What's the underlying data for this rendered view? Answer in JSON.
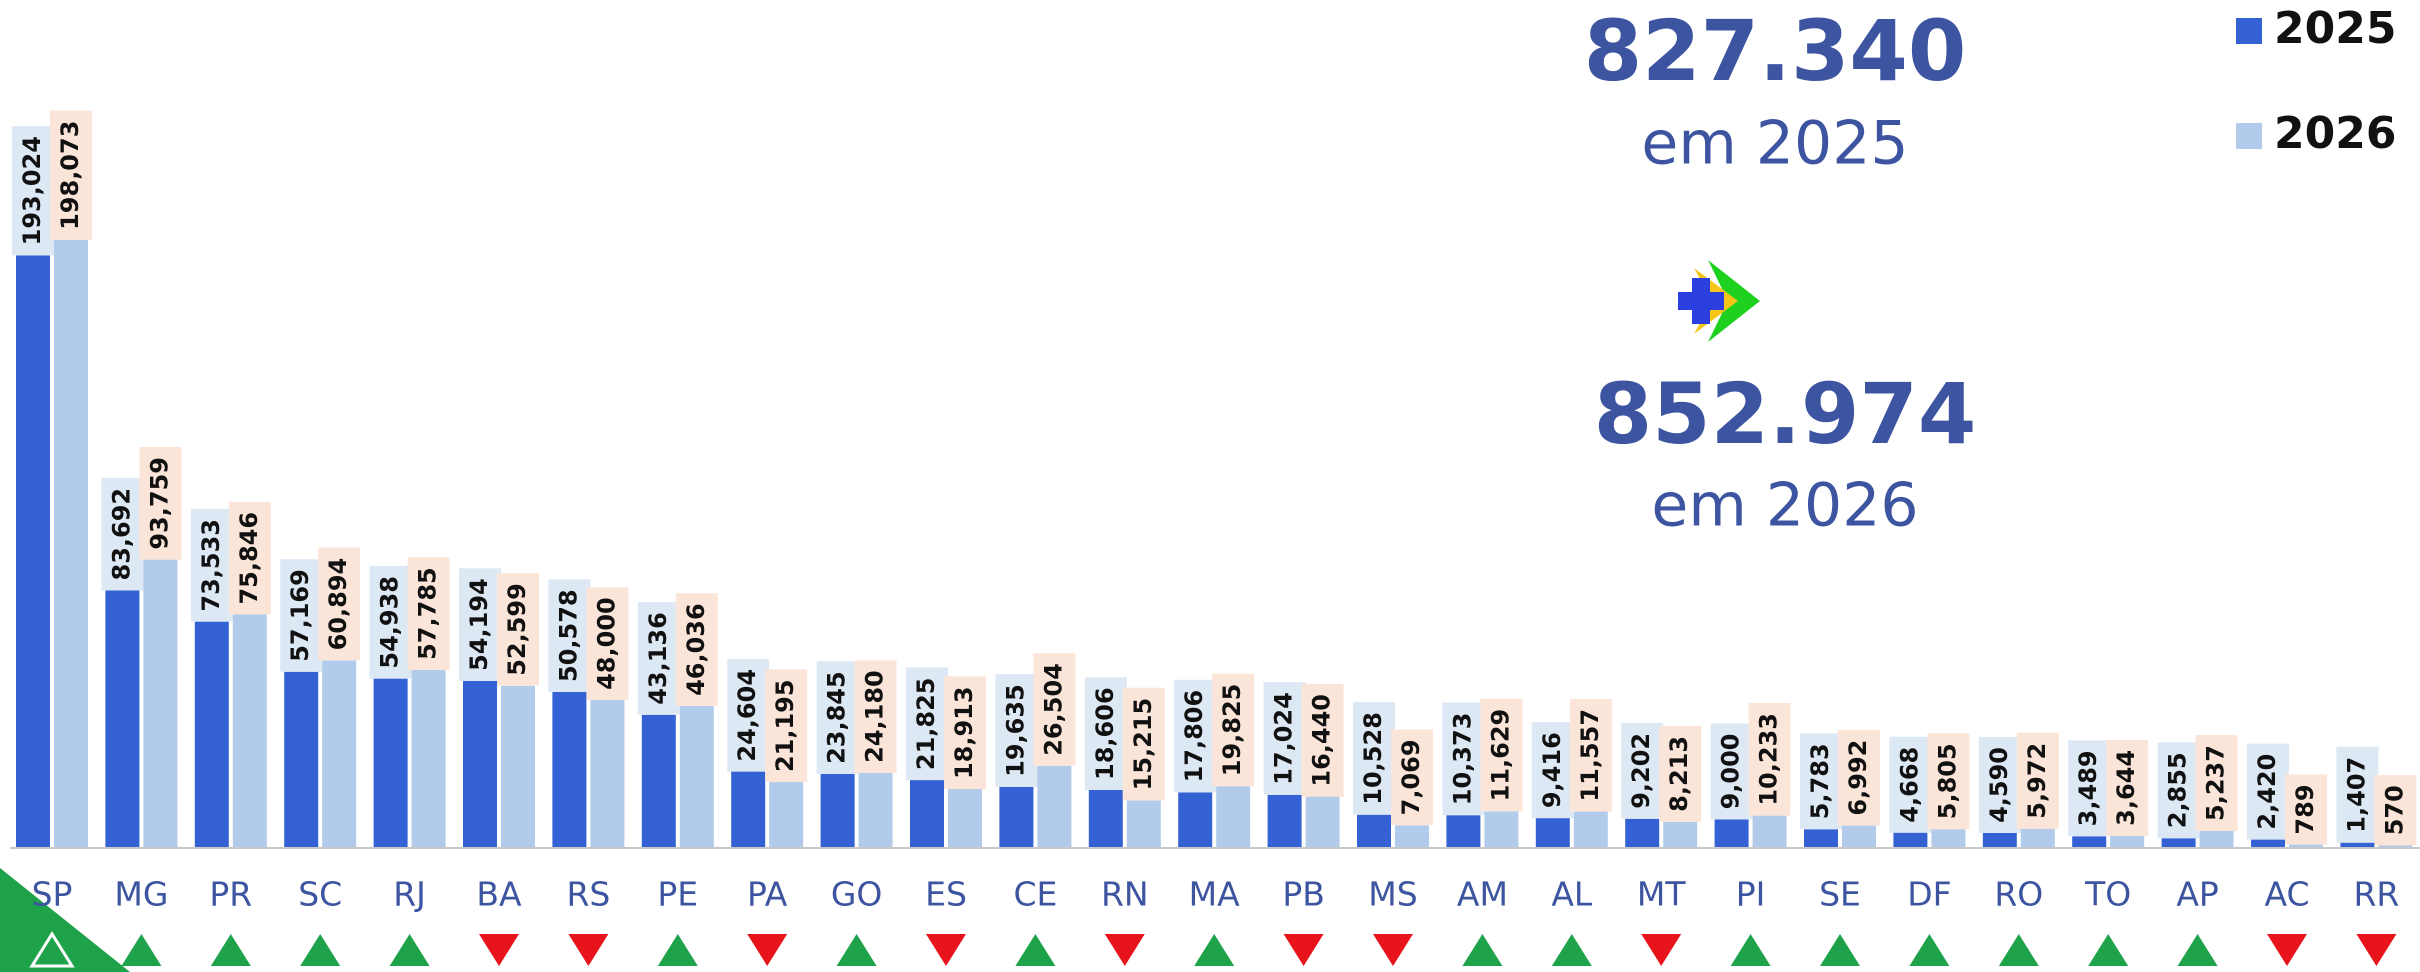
{
  "chart_data": {
    "type": "bar",
    "categories": [
      "SP",
      "MG",
      "PR",
      "SC",
      "RJ",
      "BA",
      "RS",
      "PE",
      "PA",
      "GO",
      "ES",
      "CE",
      "RN",
      "MA",
      "PB",
      "MS",
      "AM",
      "AL",
      "MT",
      "PI",
      "SE",
      "DF",
      "RO",
      "TO",
      "AP",
      "AC",
      "RR"
    ],
    "series": [
      {
        "name": "2025",
        "color": "#3461d4",
        "label_color": "#dde8f5",
        "values": [
          193024,
          83692,
          73533,
          57169,
          54938,
          54194,
          50578,
          43136,
          24604,
          23845,
          21825,
          19635,
          18606,
          17806,
          17024,
          10528,
          10373,
          9416,
          9202,
          9000,
          5783,
          4668,
          4590,
          3489,
          2855,
          2420,
          1407
        ],
        "value_labels": [
          "193,024",
          "83,692",
          "73,533",
          "57,169",
          "54,938",
          "54,194",
          "50,578",
          "43,136",
          "24,604",
          "23,845",
          "21,825",
          "19,635",
          "18,606",
          "17,806",
          "17,024",
          "10,528",
          "10,373",
          "9,416",
          "9,202",
          "9,000",
          "5,783",
          "4,668",
          "4,590",
          "3,489",
          "2,855",
          "2,420",
          "1,407"
        ]
      },
      {
        "name": "2026",
        "color": "#b3cbea",
        "label_color": "#fbe5d9",
        "values": [
          198073,
          93759,
          75846,
          60894,
          57785,
          52599,
          48000,
          46036,
          21195,
          24180,
          18913,
          26504,
          15215,
          19825,
          16440,
          7069,
          11629,
          11557,
          8213,
          10233,
          6992,
          5805,
          5972,
          3644,
          5237,
          789,
          570
        ],
        "value_labels": [
          "198,073",
          "93,759",
          "75,846",
          "60,894",
          "57,785",
          "52,599",
          "48,000",
          "46,036",
          "21,195",
          "24,180",
          "18,913",
          "26,504",
          "15,215",
          "19,825",
          "16,440",
          "7,069",
          "11,629",
          "11,557",
          "8,213",
          "10,233",
          "6,992",
          "5,805",
          "5,972",
          "3,644",
          "5,237",
          "789",
          "570"
        ]
      }
    ],
    "ylim": [
      0,
      200000
    ],
    "up_color": "#1fa34a",
    "down_color": "#e8141c",
    "total_2025": "827.340",
    "total_2025_caption": "em 2025",
    "total_2026": "852.974",
    "total_2026_caption": "em 2026"
  }
}
